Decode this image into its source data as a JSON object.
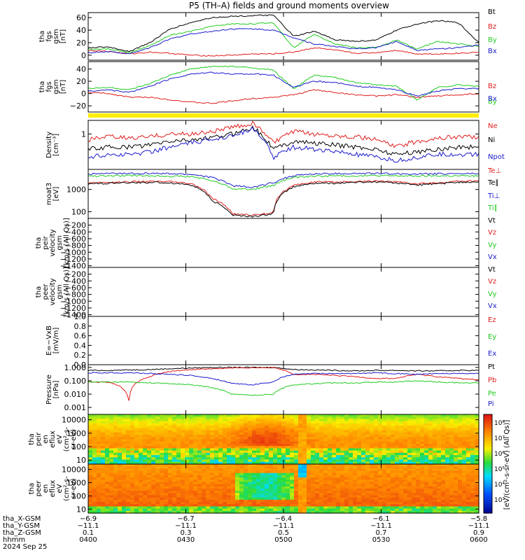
{
  "title": "P5 (TH–A) fields and ground moments overview",
  "colors": {
    "black": "#000000",
    "red": "#e11d1d",
    "green": "#22cc22",
    "blue": "#1a1acc",
    "yellow": "#ffee00"
  },
  "chart_data": [
    {
      "type": "line",
      "ylabel": [
        "tha",
        "fgs",
        "gsm",
        "[nT]"
      ],
      "yticks": [
        "60",
        "40",
        "20",
        "0"
      ],
      "series": [
        {
          "name": "Bt",
          "color": "black",
          "values": [
            12,
            13,
            6,
            20,
            42,
            52,
            60,
            62,
            63,
            64,
            30,
            38,
            25,
            22,
            24,
            40,
            50,
            55,
            52,
            20
          ]
        },
        {
          "name": "Bz",
          "color": "red",
          "values": [
            8,
            6,
            2,
            5,
            3,
            0,
            -1,
            0,
            2,
            2,
            5,
            12,
            8,
            3,
            4,
            8,
            2,
            2,
            3,
            5
          ]
        },
        {
          "name": "By",
          "color": "green",
          "values": [
            9,
            10,
            4,
            15,
            32,
            38,
            46,
            50,
            50,
            52,
            12,
            34,
            18,
            12,
            12,
            24,
            10,
            22,
            18,
            14
          ]
        },
        {
          "name": "Bx",
          "color": "blue",
          "values": [
            4,
            6,
            2,
            12,
            26,
            34,
            38,
            42,
            42,
            40,
            28,
            18,
            14,
            10,
            12,
            22,
            8,
            10,
            12,
            16
          ]
        }
      ]
    },
    {
      "type": "line",
      "ylabel": [
        "tha",
        "fgs",
        "gsm",
        "[nT]"
      ],
      "yticks": [
        "40",
        "20",
        "0",
        "−20"
      ],
      "series": [
        {
          "name": "Bz",
          "color": "red",
          "values": [
            2,
            0,
            -6,
            -6,
            -10,
            -14,
            -16,
            -12,
            -8,
            -6,
            -2,
            6,
            2,
            -2,
            -4,
            -2,
            -6,
            -4,
            -2,
            0
          ]
        },
        {
          "name": "By",
          "color": "green",
          "values": [
            8,
            10,
            6,
            16,
            30,
            40,
            44,
            44,
            42,
            38,
            8,
            30,
            26,
            18,
            14,
            12,
            -10,
            10,
            14,
            12
          ]
        },
        {
          "name": "Bx",
          "color": "blue",
          "values": [
            4,
            6,
            2,
            12,
            24,
            32,
            34,
            32,
            32,
            30,
            10,
            20,
            18,
            12,
            10,
            6,
            -4,
            4,
            8,
            8
          ]
        }
      ]
    },
    {
      "type": "line",
      "ylabel": [
        "Density",
        "[cm⁻³]"
      ],
      "yticks": [
        "1"
      ],
      "series": [
        {
          "name": "Ne",
          "color": "red",
          "values": [
            0.8,
            0.9,
            0.85,
            0.9,
            1.0,
            1.0,
            1.1,
            1.3,
            1.5,
            0.7,
            1.1,
            1.0,
            0.95,
            0.9,
            0.8,
            0.6,
            0.75,
            0.85,
            0.9,
            0.9
          ]
        },
        {
          "name": "Ni",
          "color": "black",
          "values": [
            0.55,
            0.6,
            0.6,
            0.65,
            0.75,
            0.8,
            0.85,
            1.0,
            1.3,
            0.55,
            0.75,
            0.7,
            0.65,
            0.6,
            0.55,
            0.45,
            0.5,
            0.55,
            0.6,
            0.6
          ]
        },
        {
          "name": "Npot",
          "color": "blue",
          "values": [
            0.4,
            0.45,
            0.45,
            0.5,
            0.6,
            0.7,
            0.8,
            0.95,
            1.2,
            0.4,
            0.6,
            0.55,
            0.5,
            0.45,
            0.4,
            0.35,
            0.4,
            0.45,
            0.45,
            0.45
          ]
        }
      ]
    },
    {
      "type": "line",
      "ylabel": [
        "moat3",
        "[eV]"
      ],
      "yticks": [
        "1000",
        "100"
      ],
      "series": [
        {
          "name": "Te⊥",
          "color": "red",
          "values": [
            2000,
            2100,
            2200,
            2300,
            2200,
            1800,
            400,
            80,
            70,
            90,
            1500,
            2200,
            2100,
            2300,
            2400,
            2200,
            1800,
            2000,
            2300,
            2400
          ]
        },
        {
          "name": "Te∥",
          "color": "black",
          "values": [
            1800,
            1900,
            2000,
            2100,
            2000,
            1600,
            300,
            70,
            60,
            80,
            1300,
            1900,
            1900,
            2100,
            2200,
            2000,
            1600,
            1800,
            2100,
            2200
          ]
        },
        {
          "name": "Ti⊥",
          "color": "blue",
          "values": [
            5000,
            5200,
            5300,
            5300,
            5100,
            4800,
            3500,
            1500,
            1200,
            2000,
            4200,
            5000,
            5200,
            5200,
            5300,
            5100,
            5000,
            5100,
            5200,
            5200
          ]
        },
        {
          "name": "Ti∥",
          "color": "green",
          "values": [
            4000,
            4100,
            4200,
            4200,
            4000,
            3800,
            2500,
            1100,
            1000,
            1500,
            3500,
            4000,
            4100,
            4100,
            4200,
            4100,
            4000,
            4100,
            4100,
            4100
          ]
        }
      ]
    },
    {
      "type": "line",
      "ylabel": [
        "tha",
        "peir",
        "velocity",
        "gsm",
        "[km/s (All Qs)]"
      ],
      "yticks": [
        "−200",
        "−400",
        "−600",
        "−800",
        "−1000",
        "−1200",
        "−1400"
      ],
      "series": [
        {
          "name": "Vt",
          "color": "black",
          "values": []
        },
        {
          "name": "Vz",
          "color": "red",
          "values": []
        },
        {
          "name": "Vy",
          "color": "green",
          "values": []
        },
        {
          "name": "Vx",
          "color": "blue",
          "values": []
        }
      ]
    },
    {
      "type": "line",
      "ylabel": [
        "tha",
        "peer",
        "velocity",
        "gsm",
        "[km/s (All Qs)]"
      ],
      "yticks": [
        "−200",
        "−400",
        "−600",
        "−800",
        "−1000",
        "−1200",
        "−1400"
      ],
      "series": [
        {
          "name": "Vt",
          "color": "black",
          "values": []
        },
        {
          "name": "Vz",
          "color": "red",
          "values": []
        },
        {
          "name": "Vy",
          "color": "green",
          "values": []
        },
        {
          "name": "Vx",
          "color": "blue",
          "values": []
        }
      ]
    },
    {
      "type": "line",
      "ylabel": [
        "E=−VxB",
        "[mV/m]"
      ],
      "yticks": [
        "1.0",
        "0.8",
        "0.6",
        "0.4",
        "0.2",
        "0.0"
      ],
      "series": [
        {
          "name": "Ez",
          "color": "red",
          "values": []
        },
        {
          "name": "Ey",
          "color": "green",
          "values": []
        },
        {
          "name": "Ex",
          "color": "blue",
          "values": []
        }
      ]
    },
    {
      "type": "line",
      "ylabel": [
        "Pressure",
        "[nPa]"
      ],
      "yticks": [
        "1.000",
        "0.100",
        "0.010",
        "0.001"
      ],
      "series": [
        {
          "name": "Pt",
          "color": "black",
          "values": [
            0.6,
            0.6,
            0.65,
            0.7,
            0.8,
            0.9,
            1.0,
            1.0,
            1.0,
            1.0,
            0.7,
            0.65,
            0.6,
            0.55,
            0.6,
            0.6,
            0.55,
            0.55,
            0.6,
            0.6
          ]
        },
        {
          "name": "Pb",
          "color": "red",
          "values": [
            0.08,
            0.08,
            0.0015,
            0.2,
            0.5,
            0.7,
            0.8,
            0.9,
            0.95,
            1.0,
            0.3,
            0.3,
            0.25,
            0.2,
            0.15,
            0.15,
            0.3,
            0.2,
            0.15,
            0.12
          ]
        },
        {
          "name": "Pe",
          "color": "green",
          "values": [
            0.08,
            0.08,
            0.08,
            0.07,
            0.06,
            0.05,
            0.03,
            0.01,
            0.008,
            0.01,
            0.05,
            0.06,
            0.07,
            0.07,
            0.08,
            0.08,
            0.1,
            0.08,
            0.07,
            0.07
          ]
        },
        {
          "name": "Pi",
          "color": "blue",
          "values": [
            0.4,
            0.4,
            0.4,
            0.35,
            0.3,
            0.25,
            0.15,
            0.06,
            0.05,
            0.08,
            0.3,
            0.35,
            0.35,
            0.35,
            0.4,
            0.35,
            0.3,
            0.35,
            0.35,
            0.35
          ]
        }
      ]
    },
    {
      "type": "heatmap",
      "ylabel": [
        "tha",
        "peir",
        "en",
        "eflux",
        "eV",
        "(cm²-s-",
        "sr-eV)"
      ],
      "yticks": [
        "10000",
        "1000",
        "100",
        "10"
      ]
    },
    {
      "type": "heatmap",
      "ylabel": [
        "tha",
        "peer",
        "en",
        "eflux",
        "eV",
        "(cm²-s-",
        "sr-eV)"
      ],
      "yticks": [
        "10000",
        "1000",
        "100",
        "10"
      ]
    }
  ],
  "colorbar": {
    "label": "[eV/(cm²-s-sr-eV) (All Qs)]",
    "tick_labels": [
      "10⁸",
      "10⁷",
      "10⁶",
      "10⁵",
      "10⁴",
      "10³"
    ]
  },
  "xaxis": {
    "rows": [
      {
        "label": "tha_X-GSM",
        "values": [
          "−6.9",
          "−6.7",
          "−6.4",
          "−6.1",
          "−5.8"
        ]
      },
      {
        "label": "tha_Y-GSM",
        "values": [
          "−11.1",
          "−11.1",
          "−11.1",
          "−11.1",
          "−11.1"
        ]
      },
      {
        "label": "tha_Z-GSM",
        "values": [
          "0.1",
          "0.3",
          "0.5",
          "0.7",
          "0.9"
        ]
      },
      {
        "label": "hhmm",
        "values": [
          "0400",
          "0430",
          "0500",
          "0530",
          "0600"
        ]
      }
    ],
    "date": "2024 Sep 25"
  }
}
